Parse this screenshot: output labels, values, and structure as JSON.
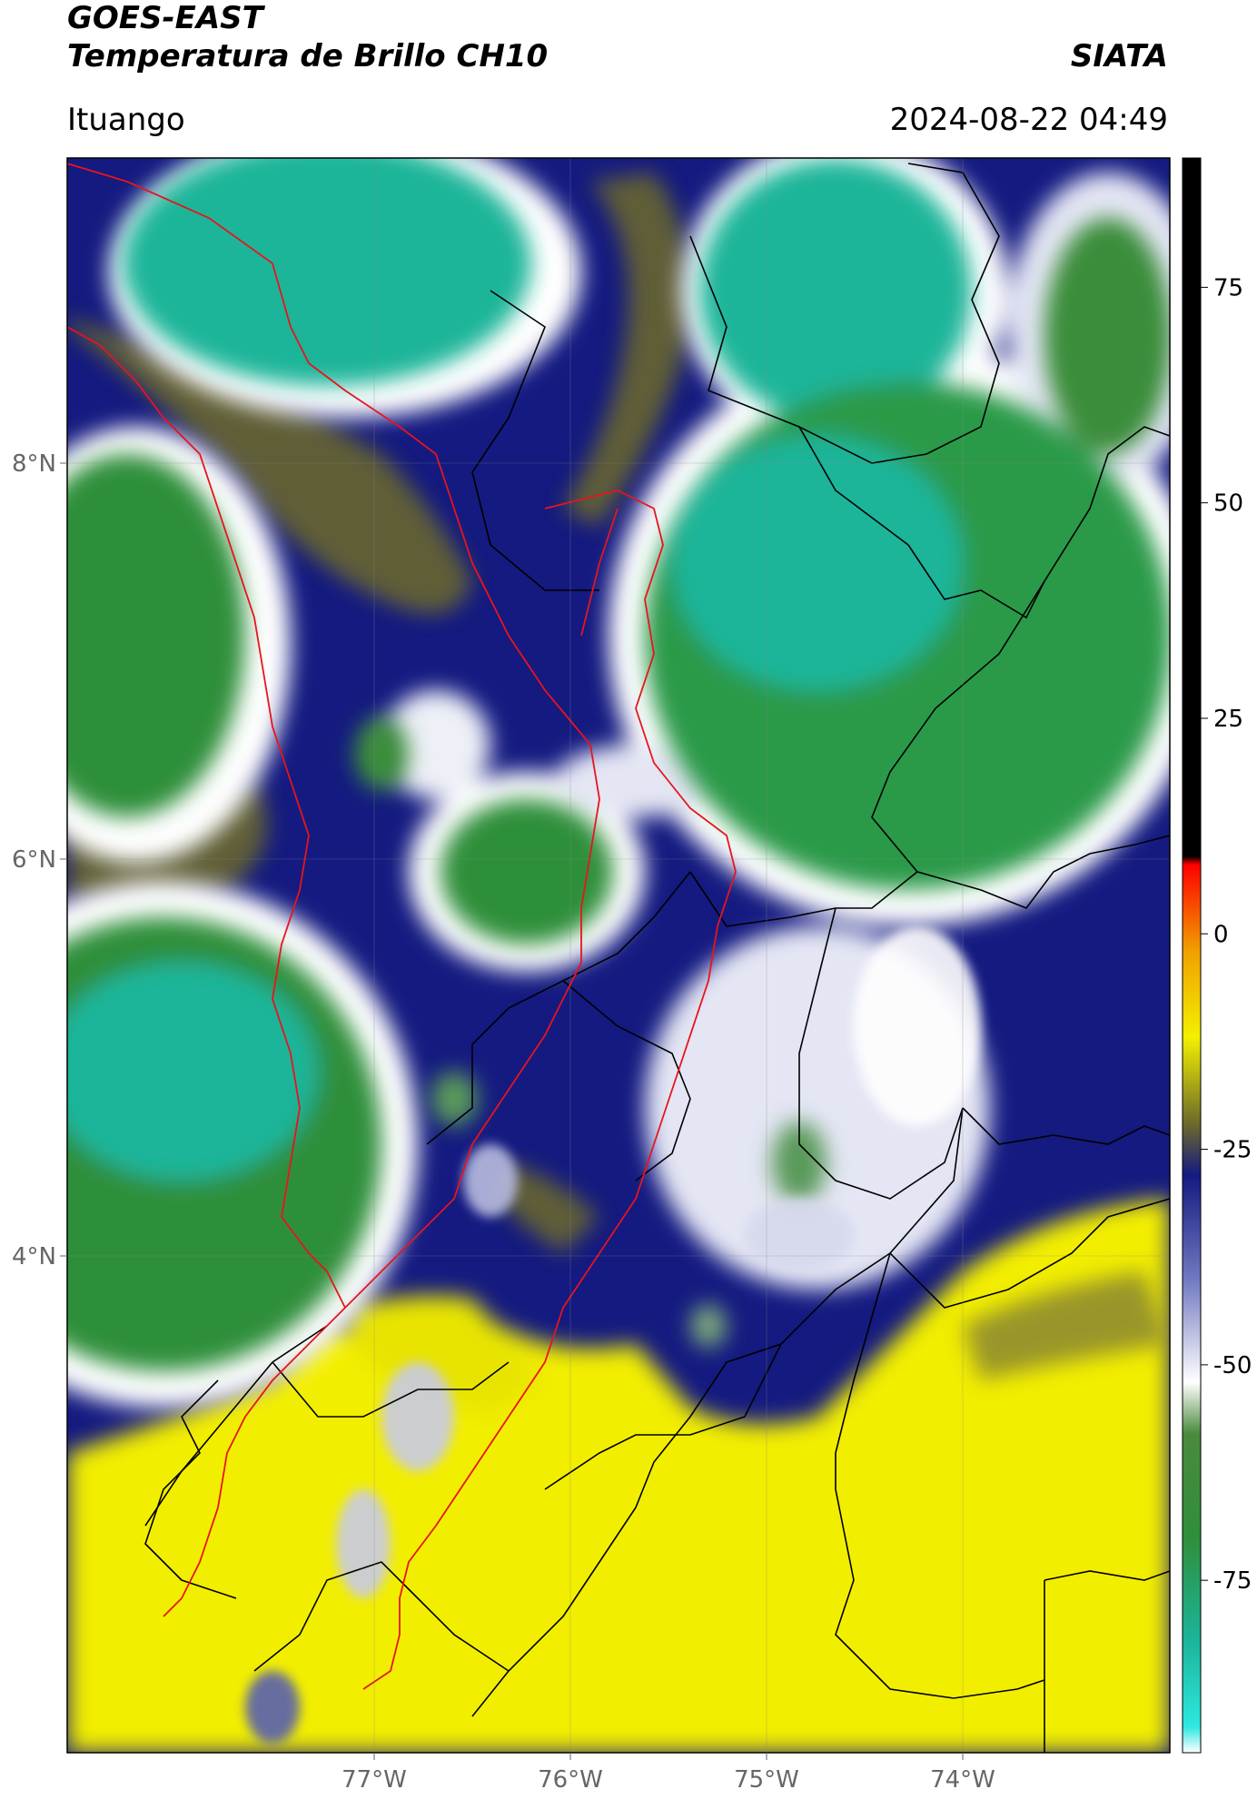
{
  "header": {
    "satellite": "GOES-EAST",
    "product": "Temperatura de Brillo CH10",
    "organization": "SIATA",
    "region": "Ituango",
    "timestamp": "2024-08-22 04:49"
  },
  "map": {
    "lon_ticks": [
      "77°W",
      "76°W",
      "75°W",
      "74°W"
    ],
    "lat_ticks": [
      "8°N",
      "6°N",
      "4°N"
    ],
    "boundary_colors": {
      "highlighted_region": "#e8141c",
      "departments": "#000000"
    }
  },
  "colorbar": {
    "tick_labels": [
      "75",
      "50",
      "25",
      "0",
      "-25",
      "-50",
      "-75"
    ],
    "range": [
      -95,
      90
    ],
    "stops": [
      {
        "value": -95,
        "color": "#ffffff"
      },
      {
        "value": -92,
        "color": "#2ee8e0"
      },
      {
        "value": -82,
        "color": "#1bb59a"
      },
      {
        "value": -70,
        "color": "#2f8f3a"
      },
      {
        "value": -58,
        "color": "#4a8a3e"
      },
      {
        "value": -52,
        "color": "#ffffff"
      },
      {
        "value": -40,
        "color": "#7078c0"
      },
      {
        "value": -28,
        "color": "#141a80"
      },
      {
        "value": -22,
        "color": "#6d6a2a"
      },
      {
        "value": -12,
        "color": "#f4f000"
      },
      {
        "value": -2,
        "color": "#f0a000"
      },
      {
        "value": 8,
        "color": "#ff0000"
      },
      {
        "value": 9,
        "color": "#000000"
      },
      {
        "value": 90,
        "color": "#000000"
      }
    ]
  },
  "colors": {
    "cloud_top_cold": "#1bb59a",
    "convection_green": "#2f8f3a",
    "anvil_white": "#ffffff",
    "mid_blue": "#141a80",
    "olive": "#6d6a2a",
    "warm_yellow": "#f2ee00"
  }
}
